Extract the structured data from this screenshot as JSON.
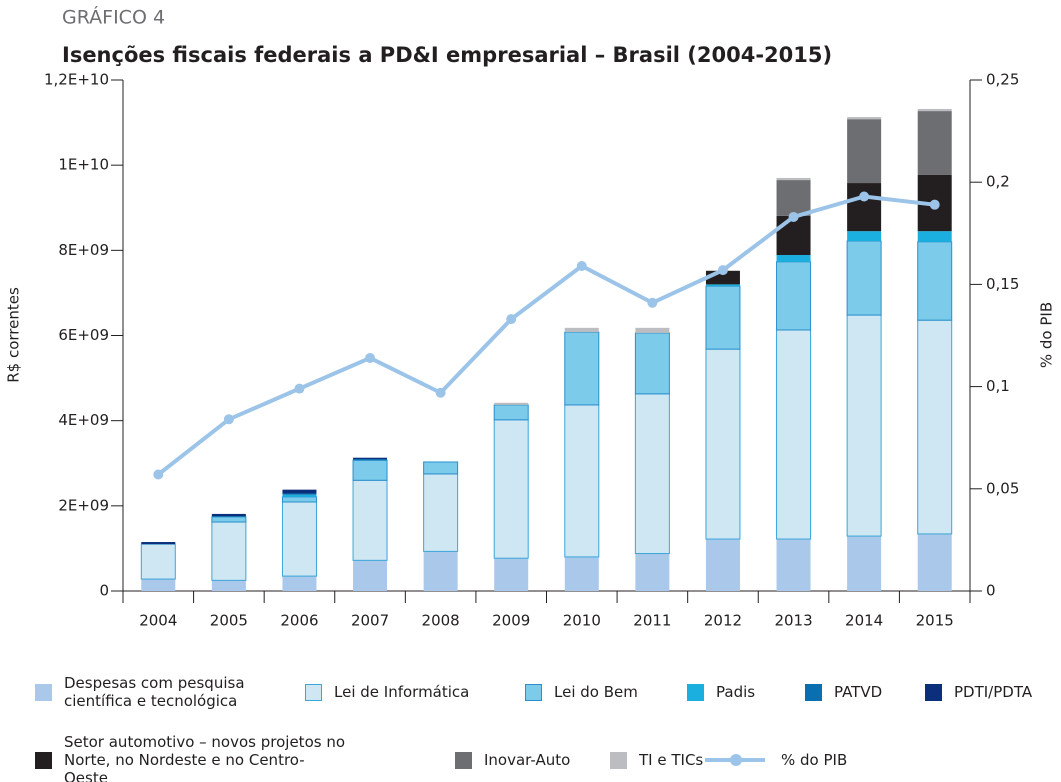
{
  "chart_data": {
    "type": "bar",
    "subtitle": "GRÁFICO 4",
    "title": "Isenções fiscais federais a PD&I empresarial – Brasil (2004-2015)",
    "y_label": "R$ correntes",
    "y2_label": "% do PIB",
    "categories": [
      "2004",
      "2005",
      "2006",
      "2007",
      "2008",
      "2009",
      "2010",
      "2011",
      "2012",
      "2013",
      "2014",
      "2015"
    ],
    "stacked": true,
    "ylim": [
      0,
      12000000000
    ],
    "yticks": [
      0,
      {
        "value": 2000000000,
        "label": "2E+09"
      },
      {
        "value": 4000000000,
        "label": "4E+09"
      },
      {
        "value": 6000000000,
        "label": "6E+09"
      },
      {
        "value": 8000000000,
        "label": "8E+09"
      },
      {
        "value": 10000000000,
        "label": "1E+10"
      },
      {
        "value": 12000000000,
        "label": "1,2E+10"
      }
    ],
    "y2lim": [
      0,
      0.25
    ],
    "y2ticks": [
      0,
      {
        "value": 0.05,
        "label": "0,05"
      },
      {
        "value": 0.1,
        "label": "0,1"
      },
      {
        "value": 0.15,
        "label": "0,15"
      },
      {
        "value": 0.2,
        "label": "0,2"
      },
      {
        "value": 0.25,
        "label": "0,25"
      }
    ],
    "series": [
      {
        "name": "Despesas com pesquisa científica e tecnológica",
        "color": "#a9c8ea",
        "values": [
          280000000,
          250000000,
          350000000,
          720000000,
          930000000,
          770000000,
          800000000,
          880000000,
          1220000000,
          1220000000,
          1290000000,
          1340000000
        ]
      },
      {
        "name": "Lei de Informática",
        "color": "#cfe6f3",
        "border": "#3aa6d9",
        "values": [
          820000000,
          1370000000,
          1740000000,
          1880000000,
          1820000000,
          3250000000,
          3570000000,
          3750000000,
          4460000000,
          4910000000,
          5190000000,
          5020000000
        ]
      },
      {
        "name": "Lei do Bem",
        "color": "#7ccbeb",
        "border": "#2a8fcc",
        "values": [
          0,
          120000000,
          120000000,
          470000000,
          280000000,
          350000000,
          1710000000,
          1430000000,
          1480000000,
          1600000000,
          1740000000,
          1840000000
        ]
      },
      {
        "name": "Padis",
        "color": "#1bafe0",
        "values": [
          0,
          0,
          50000000,
          0,
          0,
          0,
          0,
          0,
          40000000,
          160000000,
          230000000,
          250000000
        ]
      },
      {
        "name": "PATVD",
        "color": "#0a6fb0",
        "values": [
          0,
          20000000,
          30000000,
          30000000,
          0,
          0,
          0,
          0,
          0,
          0,
          0,
          0
        ]
      },
      {
        "name": "PDTI/PDTA",
        "color": "#0b2f7a",
        "values": [
          50000000,
          50000000,
          90000000,
          30000000,
          0,
          0,
          0,
          0,
          0,
          0,
          0,
          0
        ]
      },
      {
        "name": "Setor automotivo – novos projetos no Norte, no Nordeste e no Centro-Oeste",
        "color": "#231f20",
        "values": [
          0,
          0,
          0,
          0,
          0,
          0,
          0,
          0,
          320000000,
          920000000,
          1130000000,
          1320000000
        ]
      },
      {
        "name": "Inovar-Auto",
        "color": "#6d6e71",
        "values": [
          0,
          0,
          0,
          0,
          0,
          0,
          0,
          0,
          0,
          840000000,
          1500000000,
          1500000000
        ]
      },
      {
        "name": "TI e TICs",
        "color": "#bcbdc0",
        "values": [
          0,
          0,
          0,
          0,
          0,
          50000000,
          100000000,
          120000000,
          0,
          50000000,
          50000000,
          50000000
        ]
      },
      {
        "name": "% do PIB",
        "color": "#9cc4e8",
        "type": "line",
        "axis": "y2",
        "values": [
          0.057,
          0.084,
          0.099,
          0.114,
          0.097,
          0.133,
          0.159,
          0.141,
          0.157,
          0.183,
          0.193,
          0.189
        ]
      }
    ]
  }
}
